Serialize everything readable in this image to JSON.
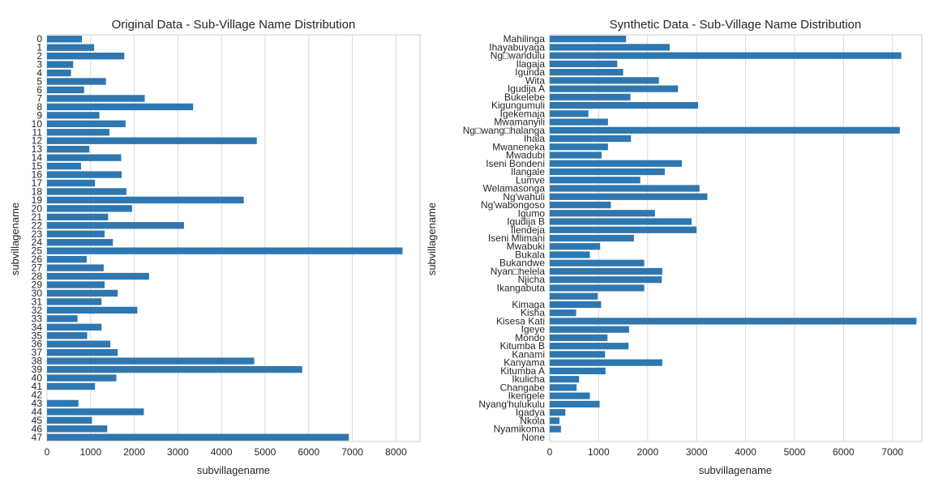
{
  "chart_data": [
    {
      "type": "bar",
      "orientation": "horizontal",
      "title": "Original Data - Sub-Village Name Distribution",
      "xlabel": "subvillagename",
      "ylabel": "subvillagename",
      "xlim": [
        0,
        8550
      ],
      "xticks": [
        0,
        1000,
        2000,
        3000,
        4000,
        5000,
        6000,
        7000,
        8000
      ],
      "grid": true,
      "bar_color": "#2e77b0",
      "categories": [
        "0",
        "1",
        "2",
        "3",
        "4",
        "5",
        "6",
        "7",
        "8",
        "9",
        "10",
        "11",
        "12",
        "13",
        "14",
        "15",
        "16",
        "17",
        "18",
        "19",
        "20",
        "21",
        "22",
        "23",
        "24",
        "25",
        "26",
        "27",
        "28",
        "29",
        "30",
        "31",
        "32",
        "33",
        "34",
        "35",
        "36",
        "37",
        "38",
        "39",
        "40",
        "41",
        "42",
        "43",
        "44",
        "45",
        "46",
        "47"
      ],
      "values": [
        800,
        1080,
        1770,
        600,
        550,
        1350,
        850,
        2240,
        3350,
        1200,
        1800,
        1430,
        4810,
        970,
        1700,
        780,
        1710,
        1100,
        1820,
        4510,
        1950,
        1400,
        3140,
        1320,
        1510,
        8150,
        910,
        1300,
        2340,
        1320,
        1620,
        1250,
        2070,
        700,
        1250,
        920,
        1450,
        1620,
        4750,
        5850,
        1590,
        1100,
        0,
        720,
        2220,
        1030,
        1380,
        6920
      ]
    },
    {
      "type": "bar",
      "orientation": "horizontal",
      "title": "Synthetic Data - Sub-Village Name Distribution",
      "xlabel": "subvillagename",
      "ylabel": "subvillagename",
      "xlim": [
        0,
        7600
      ],
      "xticks": [
        0,
        1000,
        2000,
        3000,
        4000,
        5000,
        6000,
        7000
      ],
      "grid": true,
      "bar_color": "#2e77b0",
      "categories": [
        "Mahilinga",
        "Ihayabuyaga",
        "Ng□wandulu",
        "Ilagaja",
        "Igunda",
        "Wita",
        "Igudija A",
        "Bukelebe",
        "Kigungumuli",
        "Igekemaja",
        "Mwamanyili",
        "Ng□wang□halanga",
        "Ihala",
        "Mwaneneka",
        "Mwadubi",
        "Iseni Bondeni",
        "Ilangale",
        "Lumve",
        "Welamasonga",
        "Ng'wahuli",
        "Ng'wabongoso",
        "Igumo",
        "Igudija B",
        "Ilendeja",
        "Iseni Mlimani",
        "Mwabuki",
        "Bukala",
        "Bukandwe",
        "Nyan□helela",
        "Njicha",
        "Ikangabuta",
        "",
        "Kimaga",
        "Kisha",
        "Kisesa Kati",
        "Igeye",
        "Mondo",
        "Kitumba B",
        "Kanami",
        "Kanyama",
        "Kitumba A",
        "Ikulicha",
        "Changabe",
        "Ikengele",
        "Nyang'hulukulu",
        "Igadya",
        "Nkola",
        "Nyamikoma",
        "None"
      ],
      "values": [
        1560,
        2450,
        7180,
        1380,
        1500,
        2230,
        2620,
        1650,
        3030,
        790,
        1190,
        7150,
        1660,
        1190,
        1060,
        2700,
        2350,
        1850,
        3060,
        3220,
        1250,
        2150,
        2900,
        3000,
        1720,
        1030,
        820,
        1930,
        2300,
        2290,
        1930,
        980,
        1050,
        540,
        7490,
        1620,
        1180,
        1610,
        1130,
        2300,
        1140,
        600,
        550,
        820,
        1020,
        320,
        200,
        230,
        0
      ]
    }
  ]
}
